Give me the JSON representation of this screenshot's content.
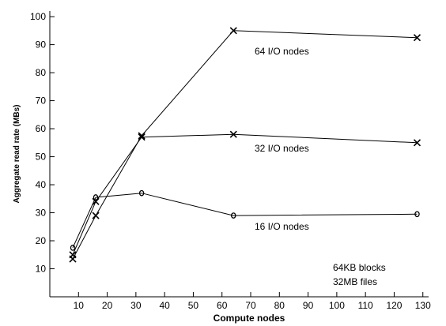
{
  "chart_data": {
    "type": "line",
    "xlabel": "Compute nodes",
    "ylabel": "Aggregate read rate (MBs)",
    "xlim": [
      0,
      132
    ],
    "ylim": [
      0,
      102
    ],
    "xticks": [
      10,
      20,
      30,
      40,
      50,
      60,
      70,
      80,
      90,
      100,
      110,
      120,
      130
    ],
    "yticks": [
      10,
      20,
      30,
      40,
      50,
      60,
      70,
      80,
      90,
      100
    ],
    "grid": false,
    "series": [
      {
        "name": "64 I/O nodes",
        "marker": "x",
        "x": [
          8,
          16,
          32,
          64,
          128
        ],
        "y": [
          13.5,
          29,
          57.5,
          95,
          92.5
        ]
      },
      {
        "name": "32 I/O nodes",
        "marker": "x",
        "x": [
          8,
          16,
          32,
          64,
          128
        ],
        "y": [
          15,
          34,
          57,
          58,
          55
        ]
      },
      {
        "name": "16 I/O nodes",
        "marker": "o",
        "x": [
          8,
          16,
          32,
          64,
          128
        ],
        "y": [
          17.5,
          35.5,
          37,
          29,
          29.5
        ]
      }
    ],
    "annotations": [
      "64KB blocks",
      "32MB files"
    ]
  }
}
